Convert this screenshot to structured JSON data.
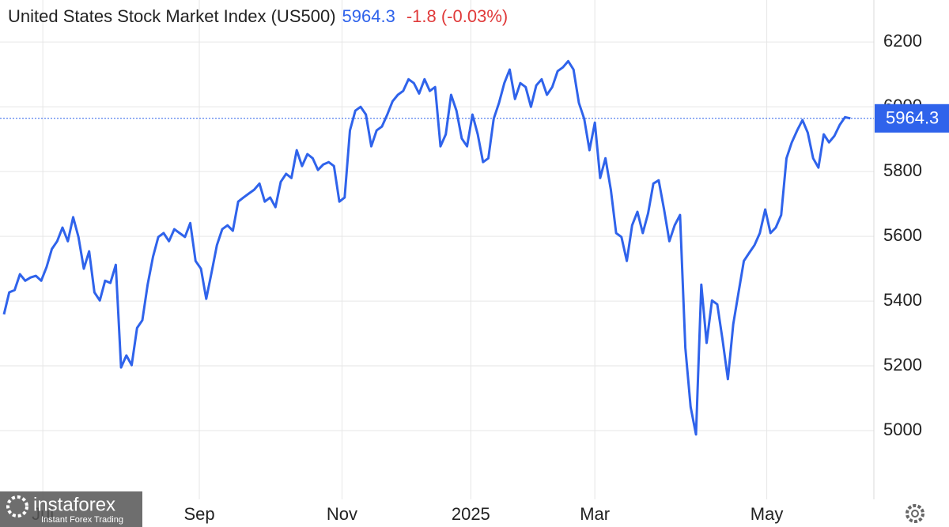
{
  "chart_data": {
    "type": "line",
    "title": "United States Stock Market Index (US500)",
    "last_value": 5964.3,
    "change_label": "-1.8 (-0.03%)",
    "color": "#2f63eb",
    "grid": true,
    "xlim": [
      0,
      160
    ],
    "xticks": [
      {
        "value": 7.3,
        "label": "Jul"
      },
      {
        "value": 36.7,
        "label": "Sep"
      },
      {
        "value": 63.5,
        "label": "Nov"
      },
      {
        "value": 87.7,
        "label": "2025"
      },
      {
        "value": 111,
        "label": "Mar"
      },
      {
        "value": 143.3,
        "label": "May"
      }
    ],
    "ylim": [
      4800,
      6320
    ],
    "yticks": [
      5000,
      5200,
      5400,
      5600,
      5800,
      6000,
      6200
    ],
    "series": [
      {
        "name": "US500",
        "color": "#2f63eb",
        "values": [
          5359,
          5427,
          5434,
          5483,
          5463,
          5473,
          5478,
          5463,
          5505,
          5561,
          5585,
          5627,
          5585,
          5659,
          5598,
          5500,
          5554,
          5427,
          5402,
          5463,
          5456,
          5512,
          5195,
          5232,
          5202,
          5317,
          5341,
          5451,
          5537,
          5598,
          5610,
          5585,
          5622,
          5610,
          5598,
          5641,
          5524,
          5500,
          5407,
          5488,
          5573,
          5622,
          5634,
          5617,
          5707,
          5720,
          5732,
          5744,
          5763,
          5707,
          5720,
          5690,
          5768,
          5793,
          5780,
          5866,
          5817,
          5854,
          5841,
          5805,
          5822,
          5829,
          5817,
          5707,
          5720,
          5927,
          5988,
          6000,
          5976,
          5878,
          5927,
          5939,
          5976,
          6017,
          6037,
          6049,
          6085,
          6073,
          6041,
          6085,
          6049,
          6061,
          5878,
          5915,
          6037,
          5988,
          5902,
          5878,
          5976,
          5915,
          5829,
          5841,
          5963,
          6012,
          6073,
          6115,
          6024,
          6073,
          6061,
          6000,
          6066,
          6085,
          6037,
          6061,
          6110,
          6122,
          6141,
          6115,
          6012,
          5963,
          5866,
          5951,
          5780,
          5841,
          5744,
          5610,
          5598,
          5524,
          5634,
          5676,
          5610,
          5671,
          5763,
          5773,
          5683,
          5585,
          5634,
          5666,
          5256,
          5073,
          4988,
          5451,
          5271,
          5402,
          5390,
          5280,
          5159,
          5329,
          5427,
          5524,
          5549,
          5573,
          5610,
          5683,
          5610,
          5627,
          5666,
          5841,
          5890,
          5927,
          5959,
          5920,
          5841,
          5812,
          5915,
          5890,
          5910,
          5944,
          5968,
          5964.3
        ]
      }
    ]
  },
  "logo": {
    "name": "instaforex",
    "tagline": "Instant Forex Trading"
  }
}
